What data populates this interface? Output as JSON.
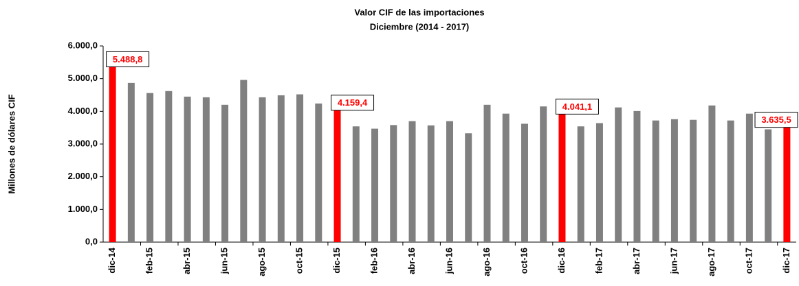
{
  "chart_data": {
    "type": "bar",
    "title": "Valor CIF de las importaciones",
    "subtitle": "Diciembre (2014 - 2017)",
    "y_label": "Millones de dólares CIF",
    "categories": [
      "dic-14",
      null,
      "feb-15",
      null,
      "abr-15",
      null,
      "jun-15",
      null,
      "ago-15",
      null,
      "oct-15",
      null,
      "dic-15",
      null,
      "feb-16",
      null,
      "abr-16",
      null,
      "jun-16",
      null,
      "ago-16",
      null,
      "oct-16",
      null,
      "dic-16",
      null,
      "feb-17",
      null,
      "abr-17",
      null,
      "jun-17",
      null,
      "ago-17",
      null,
      "oct-17",
      null,
      "dic-17"
    ],
    "values": [
      5488.8,
      4870,
      4560,
      4620,
      4450,
      4430,
      4200,
      4960,
      4430,
      4490,
      4520,
      4240,
      4159.4,
      3540,
      3470,
      3580,
      3700,
      3570,
      3700,
      3330,
      4200,
      3930,
      3620,
      4150,
      4041.1,
      3540,
      3640,
      4120,
      4010,
      3720,
      3760,
      3740,
      4180,
      3720,
      3930,
      3450,
      3635.5
    ],
    "value_labels": [
      "5.488,8",
      null,
      null,
      null,
      null,
      null,
      null,
      null,
      null,
      null,
      null,
      null,
      "4.159,4",
      null,
      null,
      null,
      null,
      null,
      null,
      null,
      null,
      null,
      null,
      null,
      "4.041,1",
      null,
      null,
      null,
      null,
      null,
      null,
      null,
      null,
      null,
      null,
      null,
      "3.635,5"
    ],
    "colors": [
      "#ff0000",
      "#808080",
      "#808080",
      "#808080",
      "#808080",
      "#808080",
      "#808080",
      "#808080",
      "#808080",
      "#808080",
      "#808080",
      "#808080",
      "#ff0000",
      "#808080",
      "#808080",
      "#808080",
      "#808080",
      "#808080",
      "#808080",
      "#808080",
      "#808080",
      "#808080",
      "#808080",
      "#808080",
      "#ff0000",
      "#808080",
      "#808080",
      "#808080",
      "#808080",
      "#808080",
      "#808080",
      "#808080",
      "#808080",
      "#808080",
      "#808080",
      "#808080",
      "#ff0000"
    ],
    "ylim": [
      0,
      6000
    ],
    "yticks": [
      {
        "value": 0,
        "label": "0,0"
      },
      {
        "value": 1000,
        "label": "1.000,0"
      },
      {
        "value": 2000,
        "label": "2.000,0"
      },
      {
        "value": 3000,
        "label": "3.000,0"
      },
      {
        "value": 4000,
        "label": "4.000,0"
      },
      {
        "value": 5000,
        "label": "5.000,0"
      },
      {
        "value": 6000,
        "label": "6.000,0"
      }
    ],
    "grid": false
  }
}
